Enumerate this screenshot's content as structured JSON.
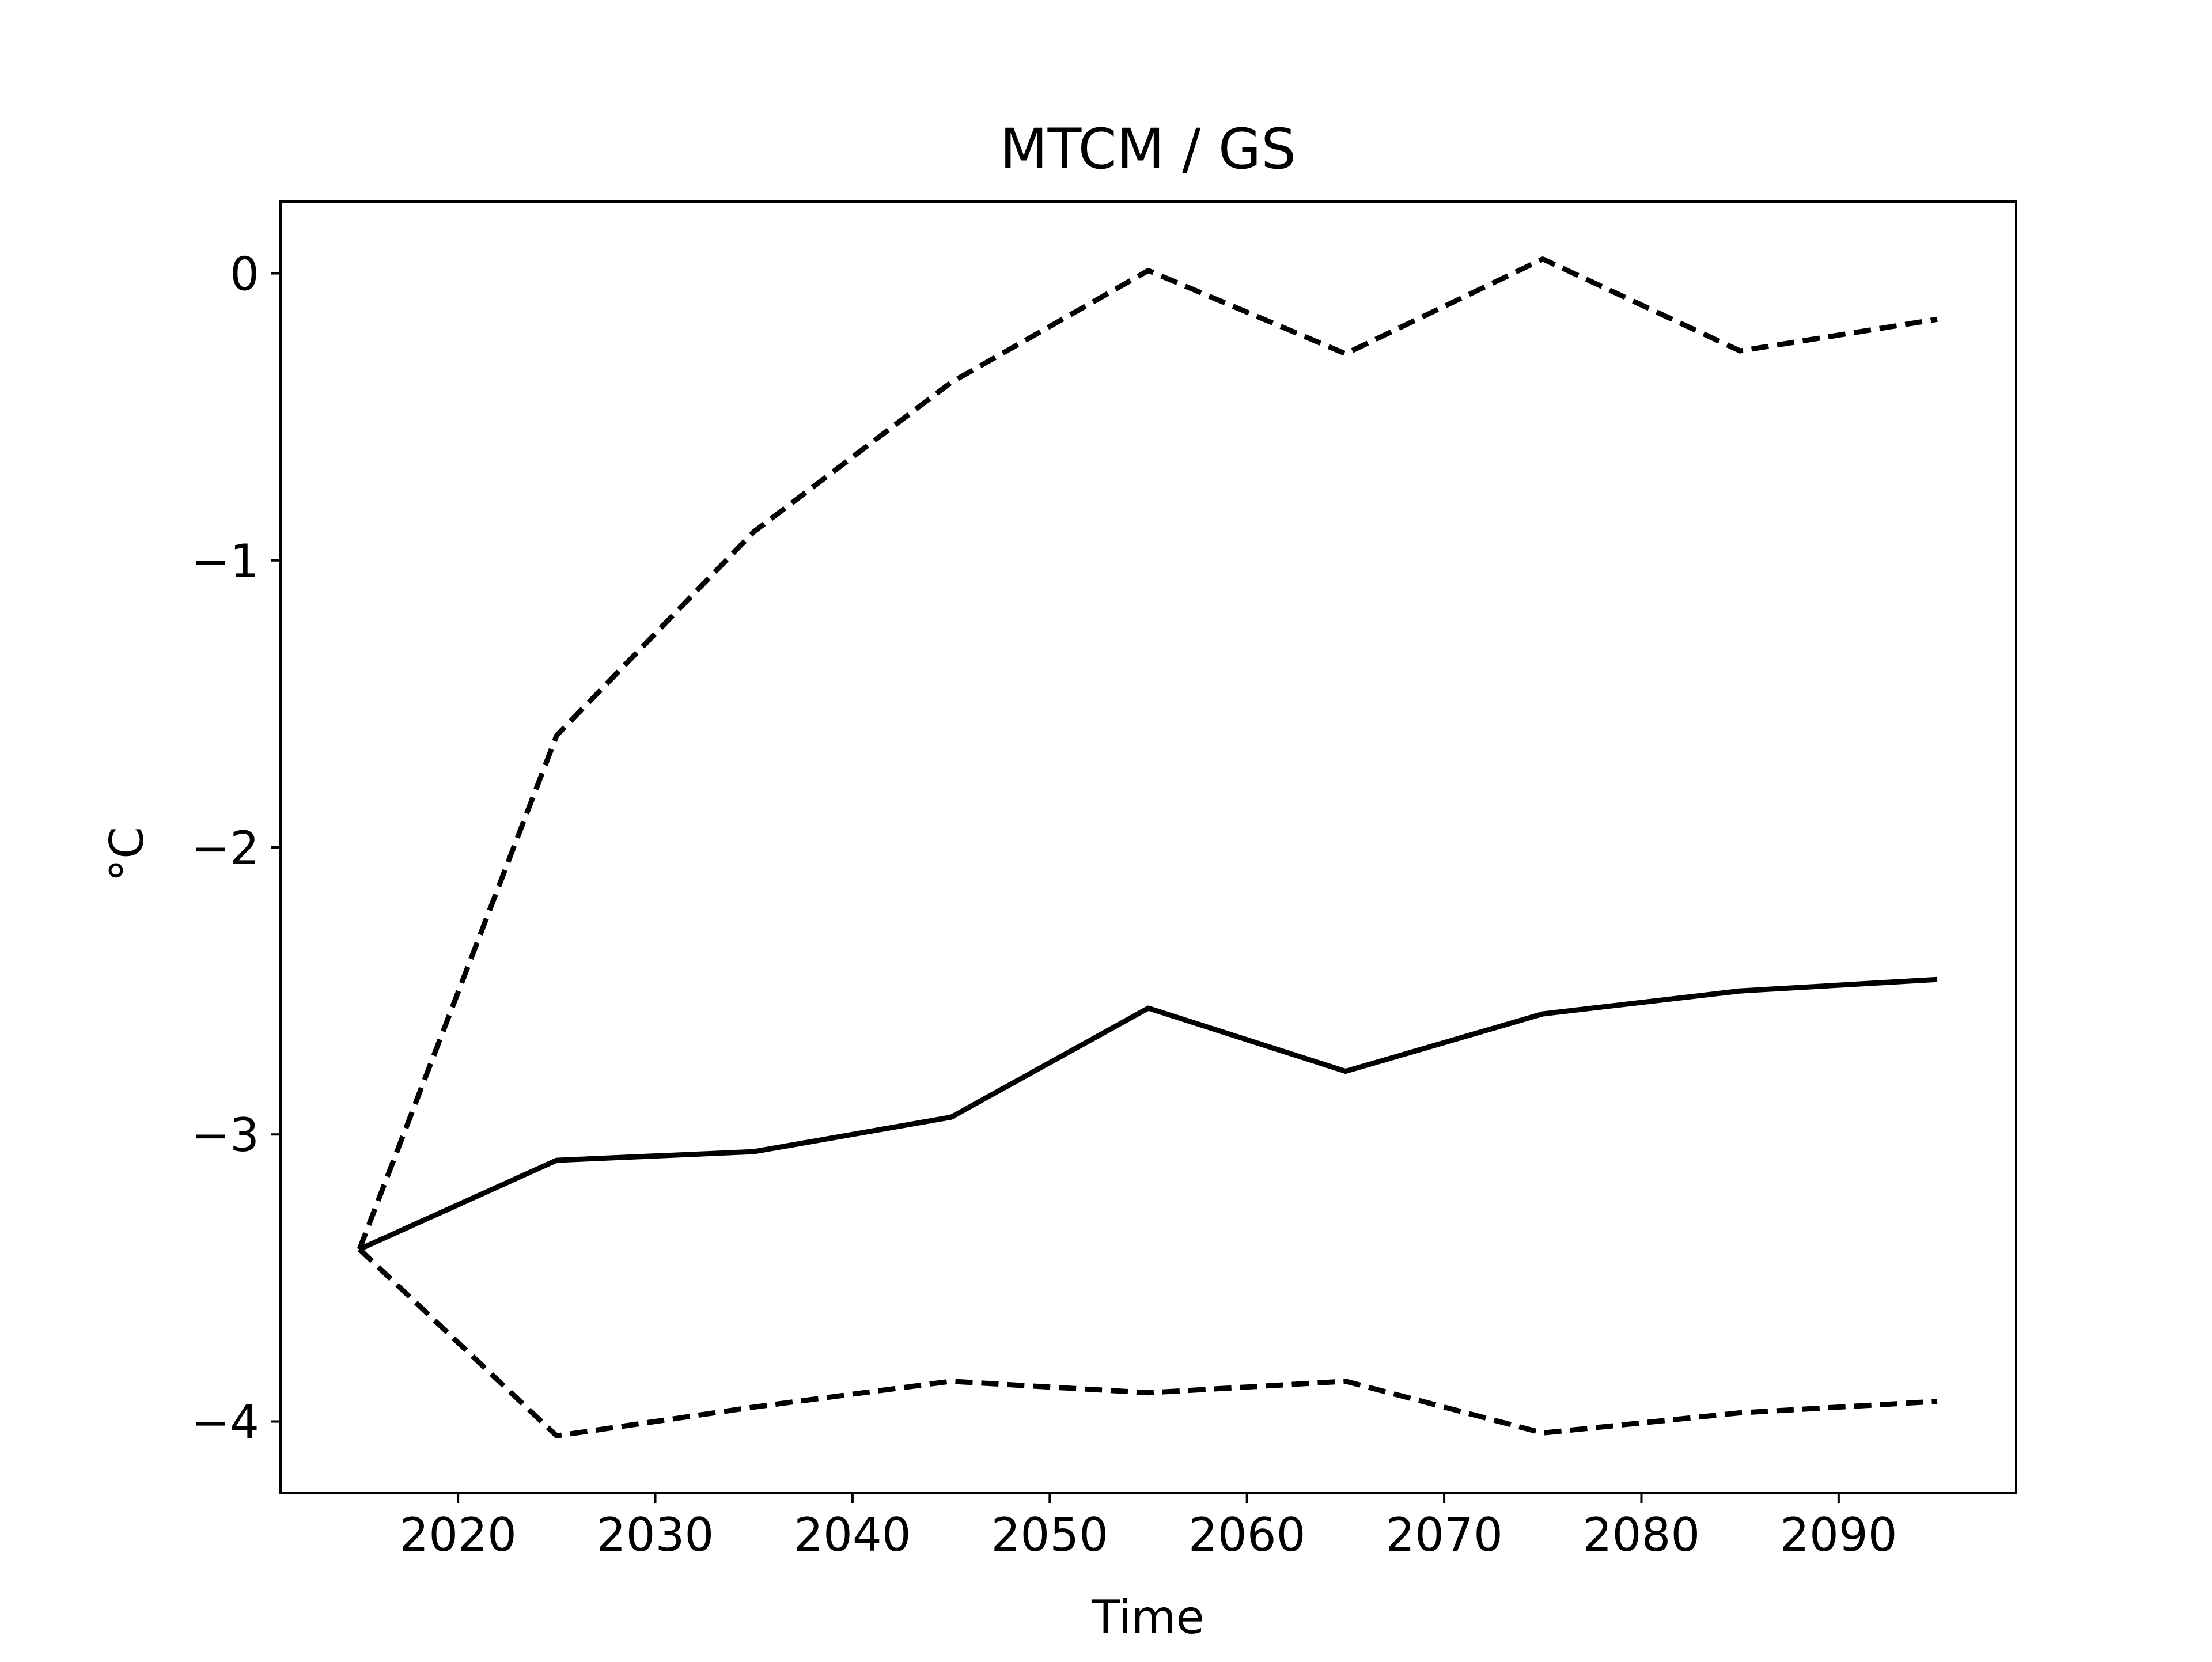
{
  "chart_data": {
    "type": "line",
    "title": "MTCM / GS",
    "xlabel": "Time",
    "ylabel": "°C",
    "x": [
      2015,
      2025,
      2035,
      2045,
      2055,
      2065,
      2075,
      2085,
      2095
    ],
    "series": [
      {
        "values": [
          -3.4,
          -3.09,
          -3.06,
          -2.94,
          -2.56,
          -2.78,
          -2.58,
          -2.5,
          -2.46
        ],
        "style": "solid",
        "color": "#000000"
      },
      {
        "values": [
          -3.4,
          -1.61,
          -0.9,
          -0.38,
          0.01,
          -0.28,
          0.05,
          -0.27,
          -0.16
        ],
        "style": "dashed",
        "color": "#000000"
      },
      {
        "values": [
          -3.4,
          -4.05,
          -3.95,
          -3.86,
          -3.9,
          -3.86,
          -4.04,
          -3.97,
          -3.93
        ],
        "style": "dashed",
        "color": "#000000"
      }
    ],
    "xlim": [
      2011,
      2099
    ],
    "ylim": [
      -4.25,
      0.25
    ],
    "xticks": [
      2020,
      2030,
      2040,
      2050,
      2060,
      2070,
      2080,
      2090
    ],
    "xtick_labels": [
      "2020",
      "2030",
      "2040",
      "2050",
      "2060",
      "2070",
      "2080",
      "2090"
    ],
    "yticks": [
      0,
      -1,
      -2,
      -3,
      -4
    ],
    "ytick_labels": [
      "0",
      "−1",
      "−2",
      "−3",
      "−4"
    ],
    "grid": false,
    "legend": "none"
  }
}
